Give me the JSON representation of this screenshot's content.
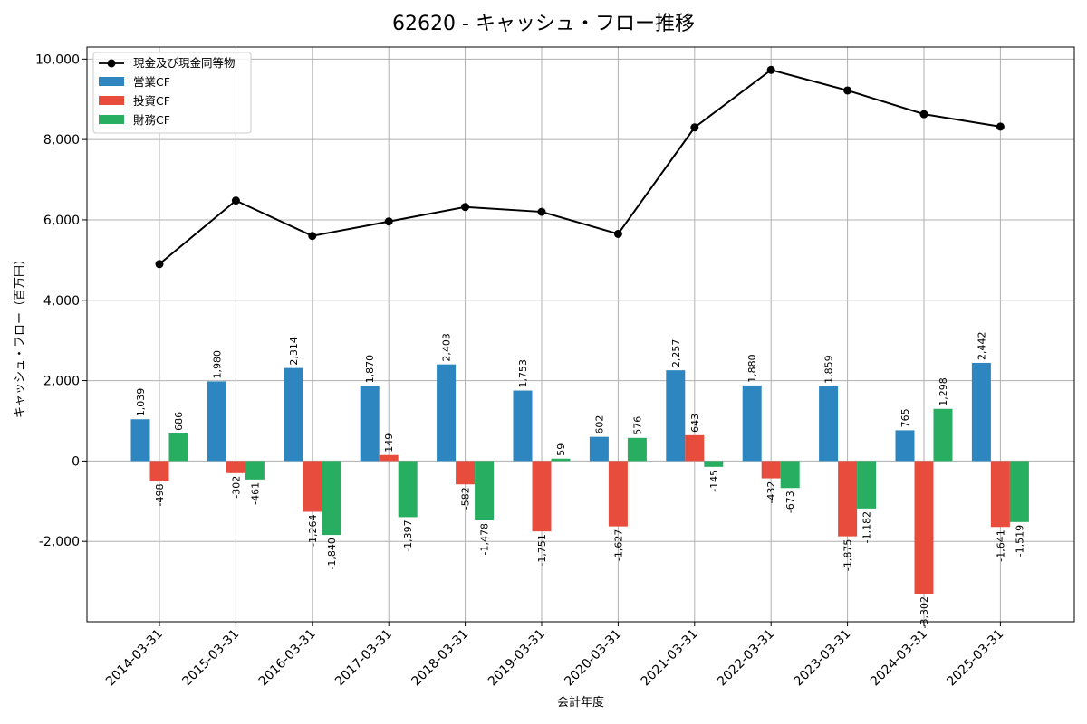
{
  "chart_data": {
    "type": "bar",
    "title": "62620 - キャッシュ・フロー推移",
    "xlabel": "会計年度",
    "ylabel": "キャッシュ・フロー（百万円）",
    "categories": [
      "2014-03-31",
      "2015-03-31",
      "2016-03-31",
      "2017-03-31",
      "2018-03-31",
      "2019-03-31",
      "2020-03-31",
      "2021-03-31",
      "2022-03-31",
      "2023-03-31",
      "2024-03-31",
      "2025-03-31"
    ],
    "ylim": [
      -4000,
      10300
    ],
    "yticks": [
      -2000,
      0,
      2000,
      4000,
      6000,
      8000,
      10000
    ],
    "ytick_labels": [
      "-2,000",
      "0",
      "2,000",
      "4,000",
      "6,000",
      "8,000",
      "10,000"
    ],
    "grid": true,
    "legend_position": "top-left",
    "bar_series": [
      {
        "name": "営業CF",
        "color": "#2e86c1",
        "values": [
          1039,
          1980,
          2314,
          1870,
          2403,
          1753,
          602,
          2257,
          1880,
          1859,
          765,
          2442
        ],
        "labels": [
          "1,039",
          "1,980",
          "2,314",
          "1,870",
          "2,403",
          "1,753",
          "602",
          "2,257",
          "1,880",
          "1,859",
          "765",
          "2,442"
        ]
      },
      {
        "name": "投資CF",
        "color": "#e74c3c",
        "values": [
          -498,
          -302,
          -1264,
          149,
          -582,
          -1751,
          -1627,
          643,
          -432,
          -1875,
          -3302,
          -1641
        ],
        "labels": [
          "-498",
          "-302",
          "-1,264",
          "149",
          "-582",
          "-1,751",
          "-1,627",
          "643",
          "-432",
          "-1,875",
          "-3,302",
          "-1,641"
        ]
      },
      {
        "name": "財務CF",
        "color": "#27ae60",
        "values": [
          686,
          -461,
          -1840,
          -1397,
          -1478,
          59,
          576,
          -145,
          -673,
          -1182,
          1298,
          -1519
        ],
        "labels": [
          "686",
          "-461",
          "-1,840",
          "-1,397",
          "-1,478",
          "59",
          "576",
          "-145",
          "-673",
          "-1,182",
          "1,298",
          "-1,519"
        ]
      }
    ],
    "line_series": {
      "name": "現金及び現金同等物",
      "color": "#000000",
      "values": [
        4900,
        6480,
        5600,
        5960,
        6320,
        6200,
        5650,
        8300,
        9730,
        9220,
        8630,
        8320
      ]
    }
  }
}
